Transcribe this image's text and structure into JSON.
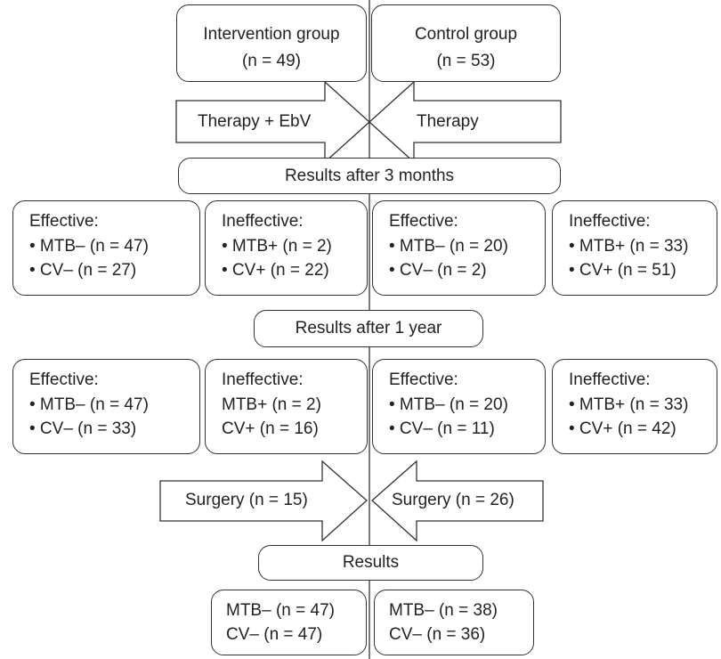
{
  "groups": [
    {
      "name": "Intervention group",
      "n": "(n = 49)"
    },
    {
      "name": "Control group",
      "n": "(n = 53)"
    }
  ],
  "therapy": [
    "Therapy + EbV",
    "Therapy"
  ],
  "stage1": {
    "title": "Results after 3 months",
    "boxes": [
      {
        "heading": "Effective:",
        "items": [
          "• MTB– (n = 47)",
          "• CV– (n = 27)"
        ]
      },
      {
        "heading": "Ineffective:",
        "items": [
          "• MTB+ (n = 2)",
          "• CV+ (n = 22)"
        ]
      },
      {
        "heading": "Effective:",
        "items": [
          "• MTB– (n = 20)",
          "• CV– (n = 2)"
        ]
      },
      {
        "heading": "Ineffective:",
        "items": [
          "• MTB+ (n = 33)",
          "• CV+ (n = 51)"
        ]
      }
    ]
  },
  "stage2": {
    "title": "Results after 1 year",
    "boxes": [
      {
        "heading": "Effective:",
        "items": [
          "• MTB– (n = 47)",
          "• CV– (n = 33)"
        ]
      },
      {
        "heading": "Ineffective:",
        "items": [
          "MTB+ (n = 2)",
          "CV+ (n = 16)"
        ]
      },
      {
        "heading": "Effective:",
        "items": [
          "• MTB– (n = 20)",
          "• CV– (n = 11)"
        ]
      },
      {
        "heading": "Ineffective:",
        "items": [
          "• MTB+ (n = 33)",
          "• CV+ (n = 42)"
        ]
      }
    ]
  },
  "surgery": [
    "Surgery (n = 15)",
    "Surgery (n = 26)"
  ],
  "final": {
    "title": "Results",
    "boxes": [
      {
        "items": [
          "MTB– (n = 47)",
          "CV– (n = 47)"
        ]
      },
      {
        "items": [
          "MTB– (n = 38)",
          "CV– (n = 36)"
        ]
      }
    ]
  }
}
